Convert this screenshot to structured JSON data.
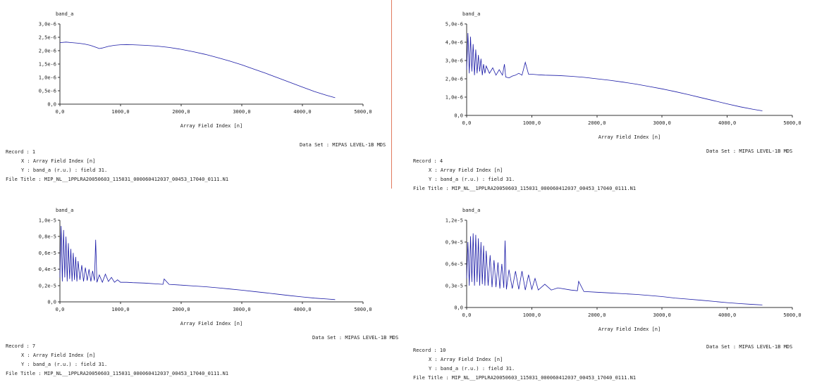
{
  "colors": {
    "series": "#1a1aa6",
    "axis": "#333333",
    "divider": "#e07a5f"
  },
  "panels": [
    {
      "record_label": "Record : 1",
      "x_line": "X : Array Field Index [n]",
      "y_line": "Y : band_a (r.u.) : field 31.",
      "file_title": "File Title : MIP_NL__1PPLRA20050603_115031_000060412037_00453_17040_0111.N1",
      "dataset": "Data Set : MIPAS LEVEL-1B MDS"
    },
    {
      "record_label": "Record : 4",
      "x_line": "X : Array Field Index [n]",
      "y_line": "Y : band_a (r.u.) : field 31.",
      "file_title": "File Title : MIP_NL__1PPLRA20050603_115031_000060412037_00453_17040_0111.N1",
      "dataset": "Data Set : MIPAS LEVEL-1B MDS"
    },
    {
      "record_label": "Record : 7",
      "x_line": "X : Array Field Index [n]",
      "y_line": "Y : band_a (r.u.) : field 31.",
      "file_title": "File Title : MIP_NL__1PPLRA20050603_115031_000060412037_00453_17040_0111.N1",
      "dataset": "Data Set : MIPAS LEVEL-1B MDS"
    },
    {
      "record_label": "Record : 10",
      "x_line": "X : Array Field Index [n]",
      "y_line": "Y : band_a (r.u.) : field 31.",
      "file_title": "File Title : MIP_NL__1PPLRA20050603_115031_000060412037_00453_17040_0111.N1",
      "dataset": "Data Set : MIPAS LEVEL-1B MDS"
    }
  ],
  "chart_data": [
    {
      "type": "line",
      "ylabel": "band_a",
      "xlabel": "Array Field Index [n]",
      "xlim": [
        0,
        5000
      ],
      "ylim": [
        0,
        3e-06
      ],
      "x_ticks": [
        "0,0",
        "1000,0",
        "2000,0",
        "3000,0",
        "4000,0",
        "5000,0"
      ],
      "y_ticks": [
        "0,0",
        "0,5e-6",
        "1,0e-6",
        "1,5e-6",
        "2,0e-6",
        "2,5e-6",
        "3,0e-6"
      ],
      "series": [
        {
          "x": [
            0,
            100,
            200,
            300,
            400,
            500,
            600,
            650,
            700,
            800,
            900,
            1000,
            1100,
            1200,
            1400,
            1600,
            1800,
            2000,
            2200,
            2400,
            2600,
            2800,
            3000,
            3200,
            3400,
            3600,
            3800,
            4000,
            4200,
            4400,
            4540
          ],
          "values": [
            2.3e-06,
            2.32e-06,
            2.3e-06,
            2.28e-06,
            2.25e-06,
            2.2e-06,
            2.12e-06,
            2.08e-06,
            2.1e-06,
            2.16e-06,
            2.2e-06,
            2.22e-06,
            2.23e-06,
            2.22e-06,
            2.2e-06,
            2.17e-06,
            2.12e-06,
            2.05e-06,
            1.96e-06,
            1.86e-06,
            1.74e-06,
            1.61e-06,
            1.47e-06,
            1.31e-06,
            1.15e-06,
            9.8e-07,
            8.1e-07,
            6.4e-07,
            4.7e-07,
            3.3e-07,
            2.4e-07
          ]
        }
      ]
    },
    {
      "type": "line",
      "ylabel": "band_a",
      "xlabel": "Array Field Index [n]",
      "xlim": [
        0,
        5000
      ],
      "ylim": [
        0,
        5e-06
      ],
      "x_ticks": [
        "0,0",
        "1000,0",
        "2000,0",
        "3000,0",
        "4000,0",
        "5000,0"
      ],
      "y_ticks": [
        "0,0",
        "1,0e-6",
        "2,0e-6",
        "3,0e-6",
        "4,0e-6",
        "5,0e-6"
      ],
      "series": [
        {
          "x": [
            0,
            20,
            40,
            60,
            80,
            100,
            120,
            140,
            160,
            180,
            200,
            220,
            240,
            260,
            280,
            300,
            350,
            400,
            450,
            500,
            550,
            580,
            600,
            650,
            700,
            750,
            800,
            850,
            900,
            950,
            1000,
            1100,
            1200,
            1400,
            1600,
            1800,
            2000,
            2200,
            2400,
            2600,
            2800,
            3000,
            3200,
            3400,
            3600,
            3800,
            4000,
            4200,
            4400,
            4540
          ],
          "values": [
            2.5e-06,
            4.5e-06,
            2.3e-06,
            4.3e-06,
            2.4e-06,
            3.9e-06,
            2.2e-06,
            3.6e-06,
            2.3e-06,
            3.3e-06,
            2.4e-06,
            3.1e-06,
            2.2e-06,
            2.8e-06,
            2.3e-06,
            2.7e-06,
            2.3e-06,
            2.6e-06,
            2.2e-06,
            2.5e-06,
            2.2e-06,
            2.8e-06,
            2.1e-06,
            2.05e-06,
            2.15e-06,
            2.2e-06,
            2.3e-06,
            2.2e-06,
            2.9e-06,
            2.25e-06,
            2.25e-06,
            2.22e-06,
            2.2e-06,
            2.18e-06,
            2.14e-06,
            2.08e-06,
            2e-06,
            1.92e-06,
            1.82e-06,
            1.71e-06,
            1.58e-06,
            1.45e-06,
            1.3e-06,
            1.14e-06,
            9.7e-07,
            8e-07,
            6.3e-07,
            4.7e-07,
            3.3e-07,
            2.5e-07
          ]
        }
      ]
    },
    {
      "type": "line",
      "ylabel": "band_a",
      "xlabel": "Array Field Index [n]",
      "xlim": [
        0,
        5000
      ],
      "ylim": [
        0,
        1e-05
      ],
      "x_ticks": [
        "0,0",
        "1000,0",
        "2000,0",
        "3000,0",
        "4000,0",
        "5000,0"
      ],
      "y_ticks": [
        "0,0",
        "0,2e-5",
        "0,4e-5",
        "0,6e-5",
        "0,8e-5",
        "1,0e-5"
      ],
      "series": [
        {
          "x": [
            0,
            20,
            40,
            60,
            80,
            100,
            120,
            140,
            160,
            180,
            200,
            220,
            240,
            260,
            280,
            300,
            330,
            360,
            390,
            420,
            450,
            480,
            510,
            540,
            570,
            590,
            610,
            650,
            700,
            750,
            800,
            850,
            900,
            950,
            1000,
            1100,
            1200,
            1400,
            1600,
            1700,
            1720,
            1800,
            2000,
            2200,
            2400,
            2600,
            2800,
            3000,
            3200,
            3400,
            3600,
            3800,
            4000,
            4200,
            4400,
            4540
          ],
          "values": [
            3e-06,
            9.3e-06,
            2.5e-06,
            8.8e-06,
            3e-06,
            8e-06,
            2.5e-06,
            7.2e-06,
            2.8e-06,
            6.5e-06,
            2.5e-06,
            6e-06,
            2.7e-06,
            5.5e-06,
            2.5e-06,
            5e-06,
            2.7e-06,
            4.5e-06,
            2.5e-06,
            4.2e-06,
            2.6e-06,
            4e-06,
            2.5e-06,
            3.8e-06,
            2.6e-06,
            7.6e-06,
            2.4e-06,
            3.3e-06,
            2.4e-06,
            3.4e-06,
            2.5e-06,
            3e-06,
            2.4e-06,
            2.7e-06,
            2.4e-06,
            2.4e-06,
            2.35e-06,
            2.3e-06,
            2.2e-06,
            2.15e-06,
            2.8e-06,
            2.15e-06,
            2.05e-06,
            1.95e-06,
            1.85e-06,
            1.72e-06,
            1.58e-06,
            1.43e-06,
            1.27e-06,
            1.1e-06,
            9.3e-07,
            7.6e-07,
            6e-07,
            4.6e-07,
            3.5e-07,
            2.8e-07
          ]
        }
      ]
    },
    {
      "type": "line",
      "ylabel": "band_a",
      "xlabel": "Array Field Index [n]",
      "xlim": [
        0,
        5000
      ],
      "ylim": [
        0,
        1.2e-05
      ],
      "x_ticks": [
        "0,0",
        "1000,0",
        "2000,0",
        "3000,0",
        "4000,0",
        "5000,0"
      ],
      "y_ticks": [
        "0,0",
        "0,3e-5",
        "0,6e-5",
        "0,9e-5",
        "1,2e-5"
      ],
      "series": [
        {
          "x": [
            0,
            20,
            40,
            60,
            80,
            100,
            120,
            140,
            160,
            180,
            200,
            220,
            240,
            260,
            280,
            300,
            330,
            360,
            390,
            420,
            450,
            480,
            510,
            540,
            570,
            590,
            610,
            650,
            700,
            750,
            800,
            850,
            900,
            950,
            1000,
            1050,
            1100,
            1200,
            1300,
            1400,
            1600,
            1700,
            1720,
            1800,
            2000,
            2200,
            2400,
            2600,
            2800,
            3000,
            3200,
            3400,
            3600,
            3800,
            4000,
            4200,
            4400,
            4540
          ],
          "values": [
            4e-06,
            9e-06,
            3e-06,
            9.8e-06,
            3.5e-06,
            1.02e-05,
            3e-06,
            1e-05,
            3.5e-06,
            9.5e-06,
            3e-06,
            9e-06,
            3.2e-06,
            8.5e-06,
            3e-06,
            7.8e-06,
            3e-06,
            7.2e-06,
            2.8e-06,
            6.5e-06,
            2.8e-06,
            6.2e-06,
            2.6e-06,
            6e-06,
            2.7e-06,
            9.2e-06,
            2.5e-06,
            5.2e-06,
            2.6e-06,
            5e-06,
            2.5e-06,
            5e-06,
            2.4e-06,
            4.5e-06,
            2.5e-06,
            4e-06,
            2.4e-06,
            3.2e-06,
            2.4e-06,
            2.7e-06,
            2.4e-06,
            2.3e-06,
            3.6e-06,
            2.2e-06,
            2.1e-06,
            2e-06,
            1.9e-06,
            1.8e-06,
            1.65e-06,
            1.5e-06,
            1.3e-06,
            1.15e-06,
            1e-06,
            8.3e-07,
            6.7e-07,
            5.3e-07,
            4.2e-07,
            3.5e-07
          ]
        }
      ]
    }
  ]
}
